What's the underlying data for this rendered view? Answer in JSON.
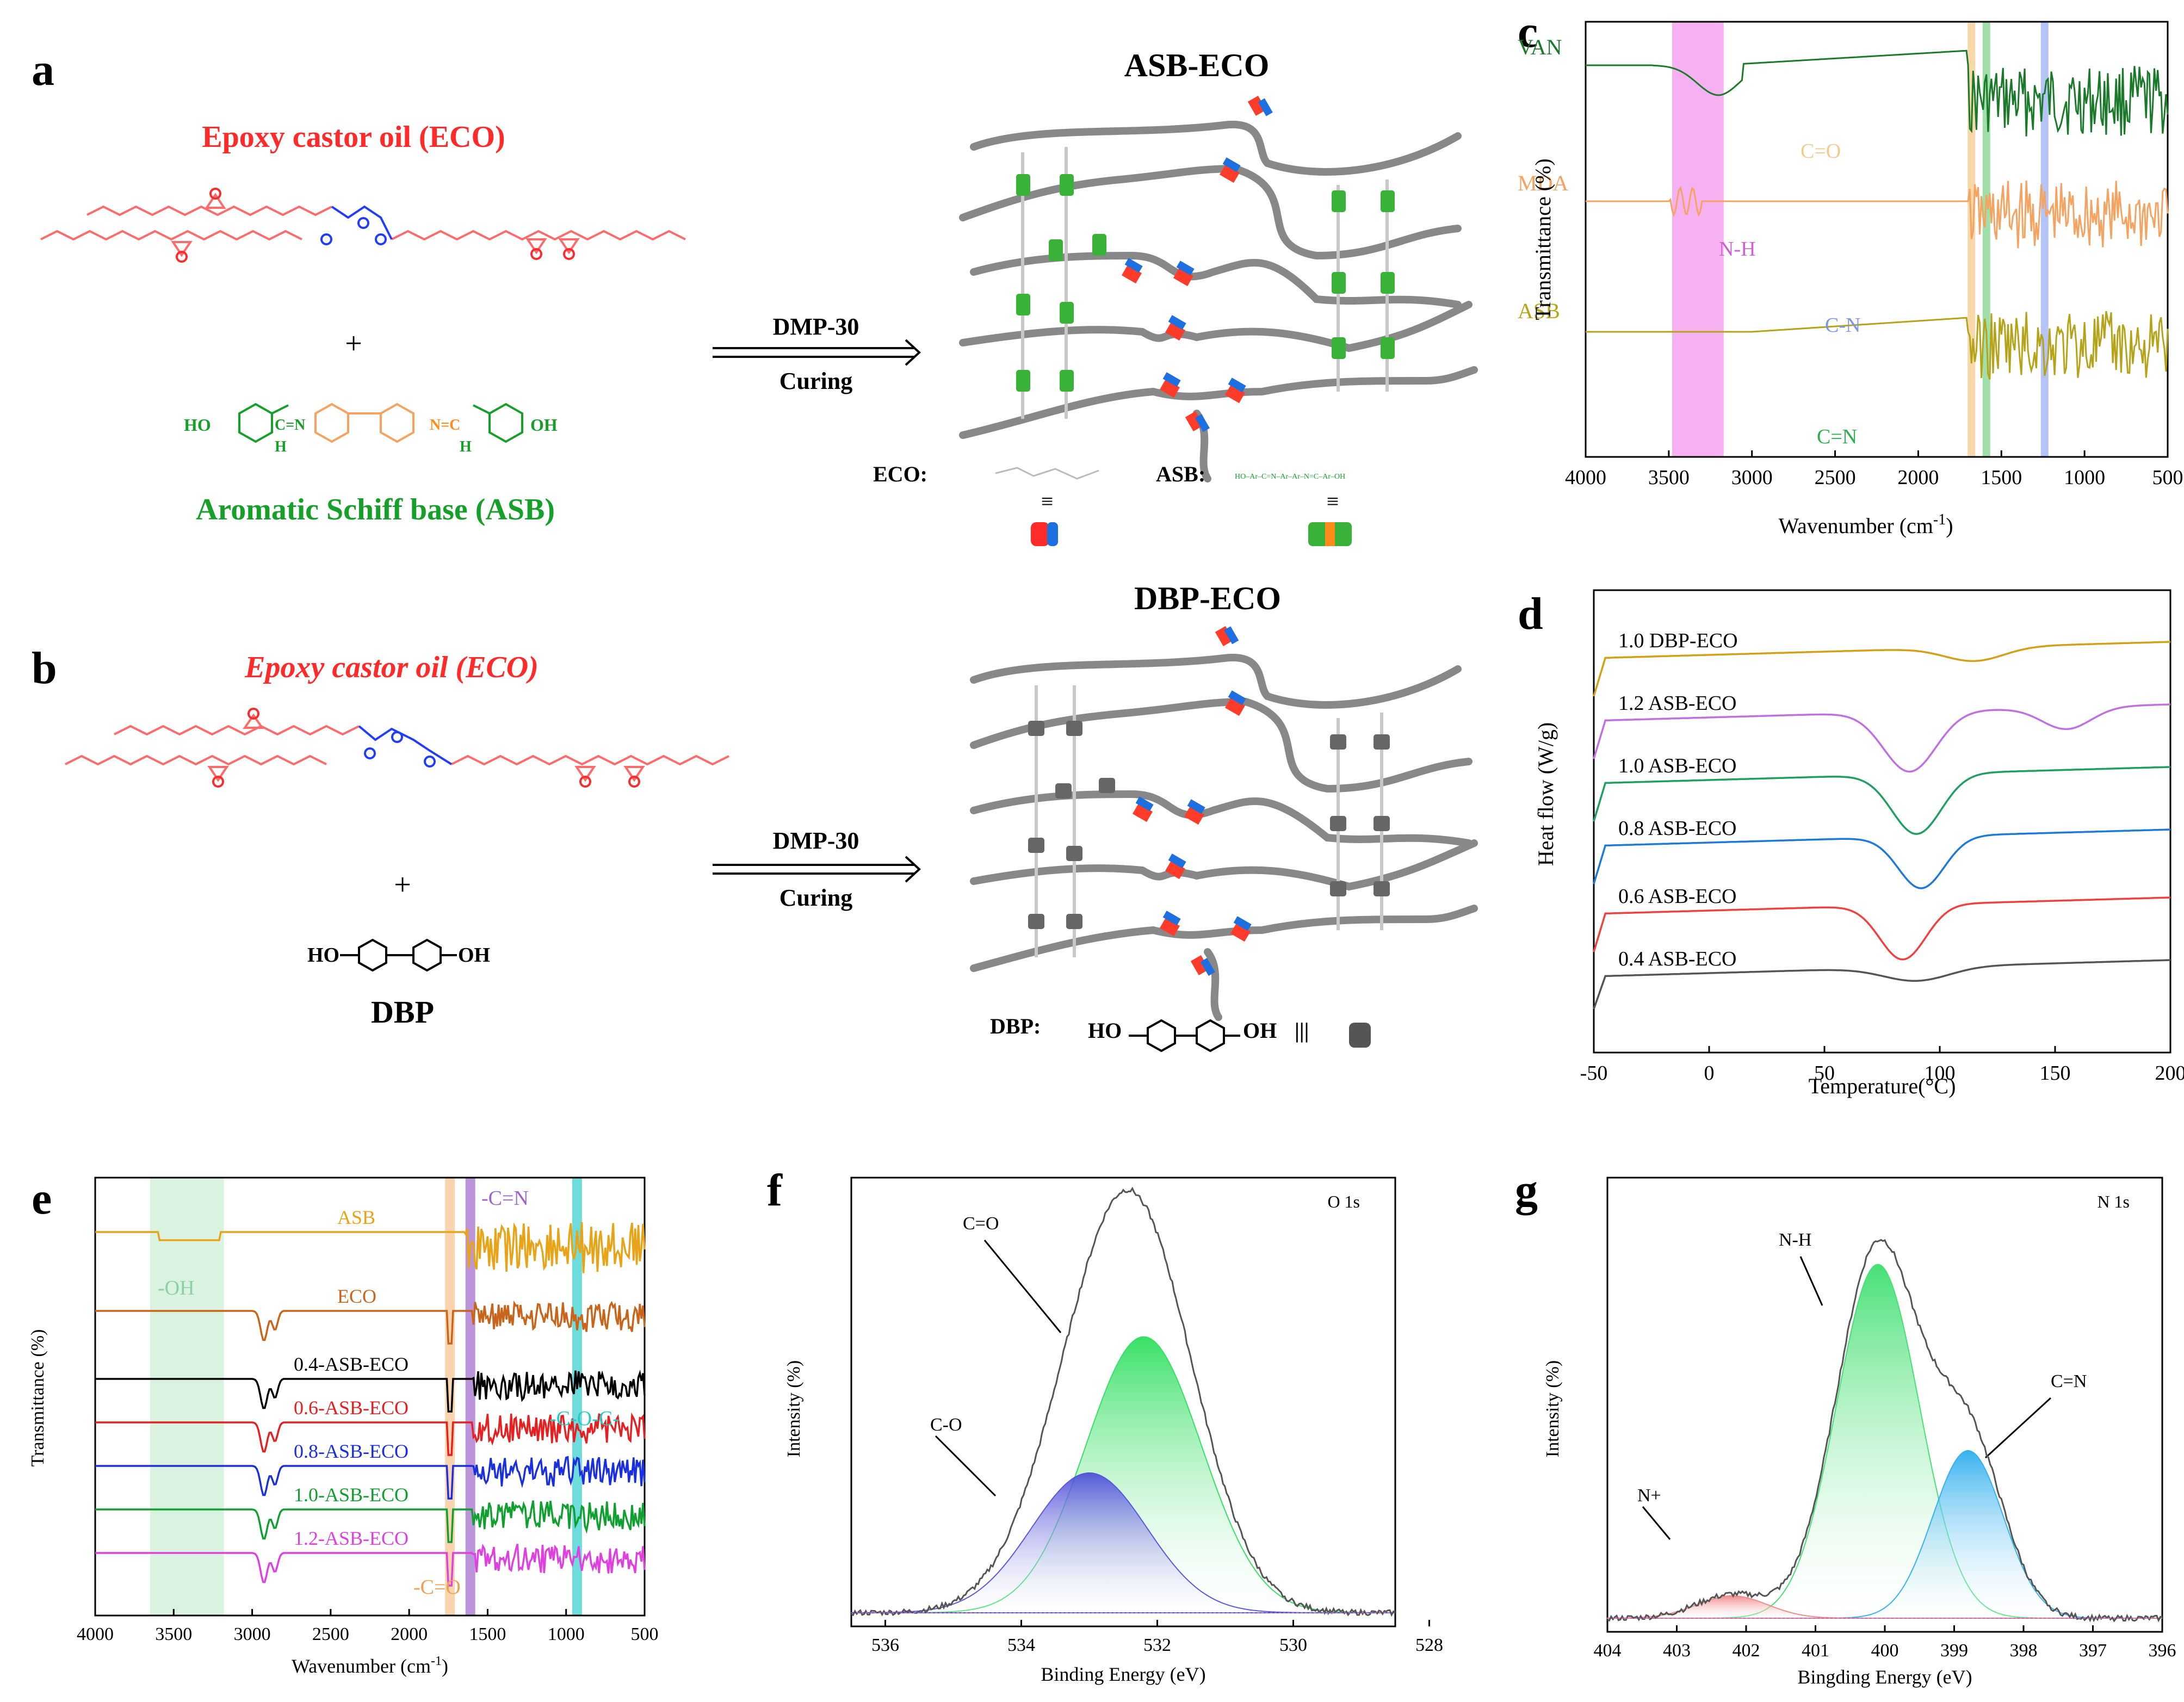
{
  "labels": {
    "a": "a",
    "b": "b",
    "c": "c",
    "d": "d",
    "e": "e",
    "f": "f",
    "g": "g"
  },
  "panel_a": {
    "eco_title": "Epoxy castor oil (ECO)",
    "plus": "+",
    "asb_title": "Aromatic Schiff base (ASB)",
    "ho": "HO",
    "oh": "OH",
    "h1": "H",
    "h2": "H",
    "n_eq1": "C=N",
    "n_eq2": "N=C",
    "arrow_top": "DMP-30",
    "arrow_bottom": "Curing",
    "network_title": "ASB-ECO",
    "legend_eco": "ECO:",
    "legend_asb": "ASB:",
    "equiv": "≡",
    "mini_asb": "HO–Ar–C=N–Ar–Ar–N=C–Ar–OH",
    "colors": {
      "eco": "#ff2a2a",
      "asb": "#16a02a",
      "imine": "#ff8c1a",
      "ester": "#1f3cff"
    }
  },
  "panel_b": {
    "eco_title": "Epoxy castor oil (ECO)",
    "plus": "+",
    "ho": "HO",
    "oh": "OH",
    "dbp_title": "DBP",
    "arrow_top": "DMP-30",
    "arrow_bottom": "Curing",
    "network_title": "DBP-ECO",
    "legend_dbp": "DBP:",
    "legend_ho": "HO",
    "legend_oh": "OH",
    "equiv": "|||"
  },
  "panel_c": {
    "chart_data": {
      "type": "line",
      "xlabel": "Wavenumber (cm",
      "xlabel_sup": "-1",
      "xlabel_close": ")",
      "ylabel": "Transmittance (%)",
      "xlim": [
        4000,
        500
      ],
      "xticks": [
        "4000",
        "3500",
        "3000",
        "2500",
        "2000",
        "1500",
        "1000",
        "500"
      ],
      "series": [
        {
          "name": "VAN",
          "color": "#1a7a2a"
        },
        {
          "name": "MDA",
          "color": "#f4a460"
        },
        {
          "name": "ASB",
          "color": "#b5a41a"
        }
      ],
      "bands": [
        {
          "label": "N-H",
          "from": 3480,
          "to": 3170,
          "color": "#f5a3f0"
        },
        {
          "label": "C=O",
          "at": 1680,
          "color": "#f7d19a"
        },
        {
          "label": "C=N",
          "at": 1590,
          "color": "#8fd99a"
        },
        {
          "label": "C-N",
          "at": 1240,
          "color": "#a9b8f5"
        }
      ]
    }
  },
  "panel_d": {
    "chart_data": {
      "type": "line",
      "xlabel": "Temperature(°C)",
      "ylabel": "Heat flow (W/g)",
      "xlim": [
        -50,
        200
      ],
      "xticks": [
        "-50",
        "0",
        "50",
        "100",
        "150",
        "200"
      ],
      "series": [
        {
          "name": "1.0 DBP-ECO",
          "color": "#d4a017"
        },
        {
          "name": "1.2 ASB-ECO",
          "color": "#c070e0"
        },
        {
          "name": "1.0 ASB-ECO",
          "color": "#20a060"
        },
        {
          "name": "0.8 ASB-ECO",
          "color": "#1e7ad8"
        },
        {
          "name": "0.6 ASB-ECO",
          "color": "#f04040"
        },
        {
          "name": "0.4 ASB-ECO",
          "color": "#555555"
        }
      ]
    }
  },
  "panel_e": {
    "chart_data": {
      "type": "line",
      "xlabel": "Wavenumber (cm",
      "xlabel_sup": "-1",
      "xlabel_close": ")",
      "ylabel": "Transmittance (%)",
      "xlim": [
        4000,
        500
      ],
      "xticks": [
        "4000",
        "3500",
        "3000",
        "2500",
        "2000",
        "1500",
        "1000",
        "500"
      ],
      "series": [
        {
          "name": "ASB",
          "color": "#e8a317"
        },
        {
          "name": "ECO",
          "color": "#c8651b"
        },
        {
          "name": "0.4-ASB-ECO",
          "color": "#000000"
        },
        {
          "name": "0.6-ASB-ECO",
          "color": "#e62020"
        },
        {
          "name": "0.8-ASB-ECO",
          "color": "#1a2fe0"
        },
        {
          "name": "1.0-ASB-ECO",
          "color": "#10a030"
        },
        {
          "name": "1.2-ASB-ECO",
          "color": "#e040e0"
        }
      ],
      "bands": [
        {
          "label": "-OH",
          "from": 3650,
          "to": 3180,
          "color": "#d6f2dd"
        },
        {
          "label": "-C=O",
          "at": 1740,
          "color": "#f9cfa6"
        },
        {
          "label": "-C=N",
          "at": 1610,
          "color": "#b48ad6"
        },
        {
          "label": "-C-O-C-",
          "at": 930,
          "color": "#5fd8d8"
        }
      ]
    }
  },
  "panel_f": {
    "chart_data": {
      "type": "area",
      "title": "O 1s",
      "xlabel": "Binding Energy (eV)",
      "ylabel": "Intensity (%)",
      "xlim": [
        536.5,
        528.5
      ],
      "xticks": [
        "536",
        "534",
        "532",
        "530",
        "528"
      ],
      "peaks": [
        {
          "label": "C=O",
          "center": 532.2,
          "fwhm": 2.0,
          "height": 0.75,
          "color": "#22dd55"
        },
        {
          "label": "C-O",
          "center": 533.0,
          "fwhm": 2.0,
          "height": 0.38,
          "color": "#4848d8"
        }
      ]
    }
  },
  "panel_g": {
    "chart_data": {
      "type": "area",
      "title": "N 1s",
      "xlabel": "Bingding Energy (eV)",
      "ylabel": "Intensity (%)",
      "xlim": [
        404,
        396
      ],
      "xticks": [
        "404",
        "403",
        "402",
        "401",
        "400",
        "399",
        "398",
        "397",
        "396"
      ],
      "peaks": [
        {
          "label": "N-H",
          "center": 400.1,
          "fwhm": 1.4,
          "height": 0.95,
          "color": "#33dd66"
        },
        {
          "label": "C=N",
          "center": 398.8,
          "fwhm": 1.2,
          "height": 0.45,
          "color": "#22aaee"
        },
        {
          "label": "N+",
          "center": 402.2,
          "fwhm": 1.2,
          "height": 0.06,
          "color": "#f08080"
        }
      ]
    }
  }
}
